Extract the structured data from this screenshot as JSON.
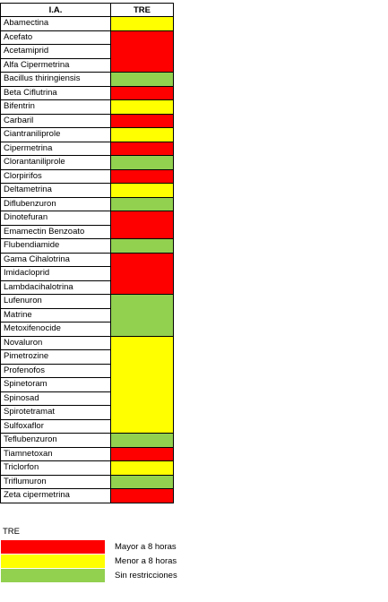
{
  "colors": {
    "red": "#ff0000",
    "yellow": "#ffff00",
    "green": "#92d050"
  },
  "table": {
    "headers": [
      "I.A.",
      "TRE"
    ],
    "rows": [
      {
        "name": "Abamectina",
        "cat": "yellow"
      },
      {
        "name": "Acefato",
        "cat": "red"
      },
      {
        "name": "Acetamiprid",
        "cat": "red"
      },
      {
        "name": "Alfa Cipermetrina",
        "cat": "red"
      },
      {
        "name": "Bacillus thiringiensis",
        "cat": "green"
      },
      {
        "name": "Beta Ciflutrina",
        "cat": "red"
      },
      {
        "name": "Bifentrin",
        "cat": "yellow"
      },
      {
        "name": "Carbaril",
        "cat": "red"
      },
      {
        "name": "Ciantraniliprole",
        "cat": "yellow"
      },
      {
        "name": "Cipermetrina",
        "cat": "red"
      },
      {
        "name": "Clorantaniliprole",
        "cat": "green"
      },
      {
        "name": "Clorpirifos",
        "cat": "red"
      },
      {
        "name": "Deltametrina",
        "cat": "yellow"
      },
      {
        "name": "Diflubenzuron",
        "cat": "green"
      },
      {
        "name": "Dinotefuran",
        "cat": "red"
      },
      {
        "name": "Emamectin Benzoato",
        "cat": "red"
      },
      {
        "name": "Flubendiamide",
        "cat": "green"
      },
      {
        "name": "Gama Cihalotrina",
        "cat": "red"
      },
      {
        "name": "Imidacloprid",
        "cat": "red"
      },
      {
        "name": "Lambdacihalotrina",
        "cat": "red"
      },
      {
        "name": "Lufenuron",
        "cat": "green"
      },
      {
        "name": "Matrine",
        "cat": "green"
      },
      {
        "name": "Metoxifenocide",
        "cat": "green"
      },
      {
        "name": "Novaluron",
        "cat": "yellow"
      },
      {
        "name": "Pimetrozine",
        "cat": "yellow"
      },
      {
        "name": "Profenofos",
        "cat": "yellow"
      },
      {
        "name": "Spinetoram",
        "cat": "yellow"
      },
      {
        "name": "Spinosad",
        "cat": "yellow"
      },
      {
        "name": "Spirotetramat",
        "cat": "yellow"
      },
      {
        "name": "Sulfoxaflor",
        "cat": "yellow"
      },
      {
        "name": "Teflubenzuron",
        "cat": "green"
      },
      {
        "name": "Tiamnetoxan",
        "cat": "red"
      },
      {
        "name": "Triclorfon",
        "cat": "yellow"
      },
      {
        "name": "Triflumuron",
        "cat": "green"
      },
      {
        "name": "Zeta cipermetrina",
        "cat": "red"
      }
    ]
  },
  "legend": {
    "title": "TRE",
    "items": [
      {
        "label": "Mayor a 8 horas",
        "cat": "red"
      },
      {
        "label": "Menor a 8 horas",
        "cat": "yellow"
      },
      {
        "label": "Sin restricciones",
        "cat": "green"
      }
    ]
  }
}
